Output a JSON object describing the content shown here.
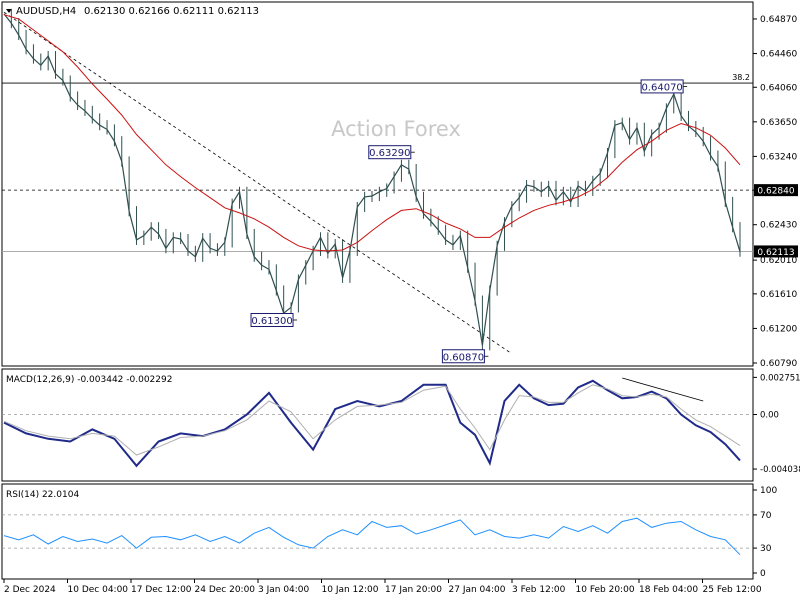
{
  "header": {
    "symbol": "AUDUSD,H4",
    "ohlc": "0.62130 0.62166 0.62111 0.62113"
  },
  "watermark": "Action Forex",
  "chart_data": [
    {
      "type": "line",
      "name": "price",
      "ylim": [
        0.6079,
        0.65
      ],
      "yticks": [
        0.6487,
        0.6446,
        0.6406,
        0.6365,
        0.6324,
        0.6284,
        0.6243,
        0.6201,
        0.6161,
        0.612,
        0.6079
      ],
      "ytick_labels": [
        "0.64870",
        "0.64460",
        "0.64060",
        "0.63650",
        "0.63240",
        "0.62840",
        "0.62430",
        "0.62010",
        "0.61610",
        "0.61200",
        "0.60790"
      ],
      "x_index_range": [
        0,
        100
      ],
      "series": [
        {
          "color": "#2f4f4f",
          "x": [
            0,
            1,
            2,
            3,
            4,
            5,
            6,
            7,
            8,
            9,
            10,
            11,
            12,
            13,
            14,
            15,
            16,
            17,
            18,
            19,
            20,
            21,
            22,
            23,
            24,
            25,
            26,
            27,
            28,
            29,
            30,
            31,
            32,
            33,
            34,
            35,
            36,
            37,
            38,
            39,
            40,
            41,
            42,
            43,
            44,
            45,
            46,
            47,
            48,
            49,
            50,
            51,
            52,
            53,
            54,
            55,
            56,
            57,
            58,
            59,
            60,
            61,
            62,
            63,
            64,
            65,
            66,
            67,
            68,
            69,
            70,
            71,
            72,
            73,
            74,
            75,
            76,
            77,
            78,
            79,
            80,
            81,
            82,
            83,
            84,
            85,
            86,
            87,
            88,
            89,
            90,
            91,
            92,
            93,
            94,
            95,
            96,
            97,
            98,
            99,
            100
          ],
          "values": [
            0.6493,
            0.6482,
            0.6468,
            0.6451,
            0.644,
            0.6432,
            0.6443,
            0.6422,
            0.6414,
            0.6395,
            0.6385,
            0.6378,
            0.6369,
            0.6361,
            0.6356,
            0.6342,
            0.6318,
            0.6259,
            0.6225,
            0.623,
            0.624,
            0.6232,
            0.6215,
            0.6228,
            0.6226,
            0.6212,
            0.6205,
            0.6227,
            0.6215,
            0.6212,
            0.6222,
            0.6268,
            0.6282,
            0.6232,
            0.6205,
            0.6195,
            0.619,
            0.6165,
            0.6138,
            0.6145,
            0.6178,
            0.6195,
            0.6212,
            0.6228,
            0.6209,
            0.622,
            0.618,
            0.6212,
            0.6264,
            0.6276,
            0.6277,
            0.6282,
            0.6286,
            0.63,
            0.6314,
            0.6309,
            0.6276,
            0.6256,
            0.6247,
            0.6237,
            0.6225,
            0.6219,
            0.623,
            0.6192,
            0.6153,
            0.61,
            0.6165,
            0.6218,
            0.6246,
            0.6265,
            0.6275,
            0.629,
            0.6288,
            0.6282,
            0.6289,
            0.6272,
            0.6282,
            0.627,
            0.6289,
            0.6283,
            0.6295,
            0.6304,
            0.6328,
            0.6361,
            0.6364,
            0.6344,
            0.6358,
            0.633,
            0.635,
            0.6358,
            0.6381,
            0.6398,
            0.6372,
            0.636,
            0.6353,
            0.6342,
            0.6325,
            0.6312,
            0.627,
            0.624,
            0.6211
          ]
        },
        {
          "color": "#cc1111",
          "x": [
            0,
            2,
            4,
            6,
            8,
            10,
            12,
            14,
            16,
            18,
            20,
            22,
            24,
            26,
            28,
            30,
            32,
            34,
            36,
            38,
            40,
            42,
            44,
            46,
            48,
            50,
            52,
            54,
            56,
            58,
            60,
            62,
            64,
            66,
            68,
            70,
            72,
            74,
            76,
            78,
            80,
            82,
            84,
            86,
            88,
            90,
            92,
            94,
            96,
            98,
            100
          ],
          "values": [
            0.6492,
            0.6487,
            0.6474,
            0.6461,
            0.6448,
            0.643,
            0.641,
            0.6392,
            0.6373,
            0.635,
            0.6332,
            0.6314,
            0.63,
            0.6287,
            0.6275,
            0.6263,
            0.6257,
            0.625,
            0.624,
            0.6228,
            0.6218,
            0.6213,
            0.6212,
            0.6213,
            0.6222,
            0.6236,
            0.6249,
            0.626,
            0.6262,
            0.6255,
            0.6245,
            0.6238,
            0.6228,
            0.6228,
            0.624,
            0.6251,
            0.626,
            0.6266,
            0.627,
            0.6276,
            0.6285,
            0.6299,
            0.6317,
            0.6332,
            0.6342,
            0.6355,
            0.6363,
            0.6358,
            0.6349,
            0.6334,
            0.6314
          ]
        }
      ],
      "annotations": [
        {
          "text": "0.64070",
          "x": 92,
          "y": 0.6407
        },
        {
          "text": "0.63290",
          "x": 55,
          "y": 0.6329
        },
        {
          "text": "0.61300",
          "x": 39,
          "y": 0.613
        },
        {
          "text": "0.60870",
          "x": 65,
          "y": 0.6087
        },
        {
          "text": "38.2",
          "y": 0.6411
        }
      ],
      "horizontal_lines": [
        {
          "y": 0.6411,
          "style": "solid"
        },
        {
          "y": 0.6284,
          "style": "dashed"
        },
        {
          "y": 0.62113,
          "style": "solid-light"
        }
      ],
      "trendline": {
        "x": [
          0,
          69
        ],
        "y": [
          0.6495,
          0.609
        ],
        "style": "dashed"
      },
      "price_labels": [
        {
          "text": "0.62840",
          "y": 0.6284
        },
        {
          "text": "0.62113",
          "y": 0.62113
        }
      ],
      "grid": false
    },
    {
      "type": "line",
      "name": "MACD",
      "title": "MACD(12,26,9) -0.003442 -0.002292",
      "ylim": [
        -0.0047,
        0.003
      ],
      "ytick_labels": [
        "0.002751",
        "0.00",
        "-0.004038"
      ],
      "yticks": [
        0.002751,
        0.0,
        -0.004038
      ],
      "series": [
        {
          "color": "#1f2a8a",
          "x": [
            0,
            3,
            6,
            9,
            12,
            15,
            18,
            21,
            24,
            27,
            30,
            33,
            36,
            39,
            42,
            45,
            48,
            51,
            54,
            57,
            60,
            62,
            64,
            66,
            68,
            70,
            72,
            74,
            76,
            78,
            80,
            82,
            84,
            86,
            88,
            90,
            92,
            94,
            96,
            98,
            100
          ],
          "values": [
            -0.0006,
            -0.0014,
            -0.0018,
            -0.002,
            -0.0011,
            -0.0018,
            -0.0038,
            -0.002,
            -0.0014,
            -0.0016,
            -0.0011,
            0.0,
            0.0016,
            -0.0006,
            -0.0026,
            0.0004,
            0.001,
            0.0006,
            0.001,
            0.0022,
            0.0022,
            -0.0006,
            -0.0015,
            -0.0036,
            0.001,
            0.0022,
            0.0012,
            0.0007,
            0.0008,
            0.002,
            0.0025,
            0.0018,
            0.0012,
            0.0013,
            0.0017,
            0.0012,
            0.0,
            -0.0008,
            -0.0013,
            -0.0022,
            -0.0034
          ]
        },
        {
          "color": "#b0b0b0",
          "x": [
            0,
            3,
            6,
            9,
            12,
            15,
            18,
            21,
            24,
            27,
            30,
            33,
            36,
            39,
            42,
            45,
            48,
            51,
            54,
            57,
            60,
            62,
            64,
            66,
            68,
            70,
            72,
            74,
            76,
            78,
            80,
            82,
            84,
            86,
            88,
            90,
            92,
            94,
            96,
            98,
            100
          ],
          "values": [
            -0.0005,
            -0.0012,
            -0.0016,
            -0.0018,
            -0.0014,
            -0.0016,
            -0.003,
            -0.0024,
            -0.0017,
            -0.0016,
            -0.0012,
            -0.0004,
            0.001,
            0.0002,
            -0.0018,
            -0.0004,
            0.0006,
            0.0007,
            0.0009,
            0.0018,
            0.0021,
            0.0004,
            -0.001,
            -0.0026,
            -0.0004,
            0.0014,
            0.0013,
            0.0009,
            0.0009,
            0.0016,
            0.0022,
            0.0019,
            0.0014,
            0.0013,
            0.0015,
            0.0013,
            0.0004,
            -0.0004,
            -0.0009,
            -0.0016,
            -0.0023
          ]
        }
      ],
      "trendline": {
        "x": [
          84,
          95
        ],
        "y": [
          0.0027,
          0.001
        ]
      }
    },
    {
      "type": "line",
      "name": "RSI",
      "title": "RSI(14) 22.0104",
      "ylim": [
        0,
        100
      ],
      "yticks": [
        100,
        70,
        30,
        0
      ],
      "ytick_labels": [
        "100",
        "70",
        "30",
        "0"
      ],
      "levels": [
        70,
        30
      ],
      "series": [
        {
          "color": "#1e90ff",
          "x": [
            0,
            2,
            4,
            6,
            8,
            10,
            12,
            14,
            16,
            18,
            20,
            22,
            24,
            26,
            28,
            30,
            32,
            34,
            36,
            38,
            40,
            42,
            44,
            46,
            48,
            50,
            52,
            54,
            56,
            58,
            60,
            62,
            64,
            66,
            68,
            70,
            72,
            74,
            76,
            78,
            80,
            82,
            84,
            86,
            88,
            90,
            92,
            94,
            96,
            98,
            100
          ],
          "values": [
            45,
            40,
            46,
            35,
            44,
            38,
            41,
            36,
            45,
            30,
            43,
            44,
            40,
            46,
            38,
            44,
            36,
            48,
            55,
            43,
            34,
            30,
            44,
            52,
            46,
            62,
            55,
            57,
            47,
            52,
            58,
            64,
            46,
            52,
            44,
            42,
            46,
            42,
            56,
            50,
            57,
            48,
            62,
            66,
            55,
            60,
            62,
            52,
            44,
            40,
            22
          ]
        }
      ]
    }
  ],
  "x_axis": {
    "labels": [
      "2 Dec 2024",
      "10 Dec 04:00",
      "17 Dec 12:00",
      "24 Dec 20:00",
      "3 Jan 04:00",
      "10 Jan 12:00",
      "17 Jan 20:00",
      "27 Jan 04:00",
      "3 Feb 12:00",
      "10 Feb 20:00",
      "18 Feb 04:00",
      "25 Feb 12:00"
    ]
  }
}
